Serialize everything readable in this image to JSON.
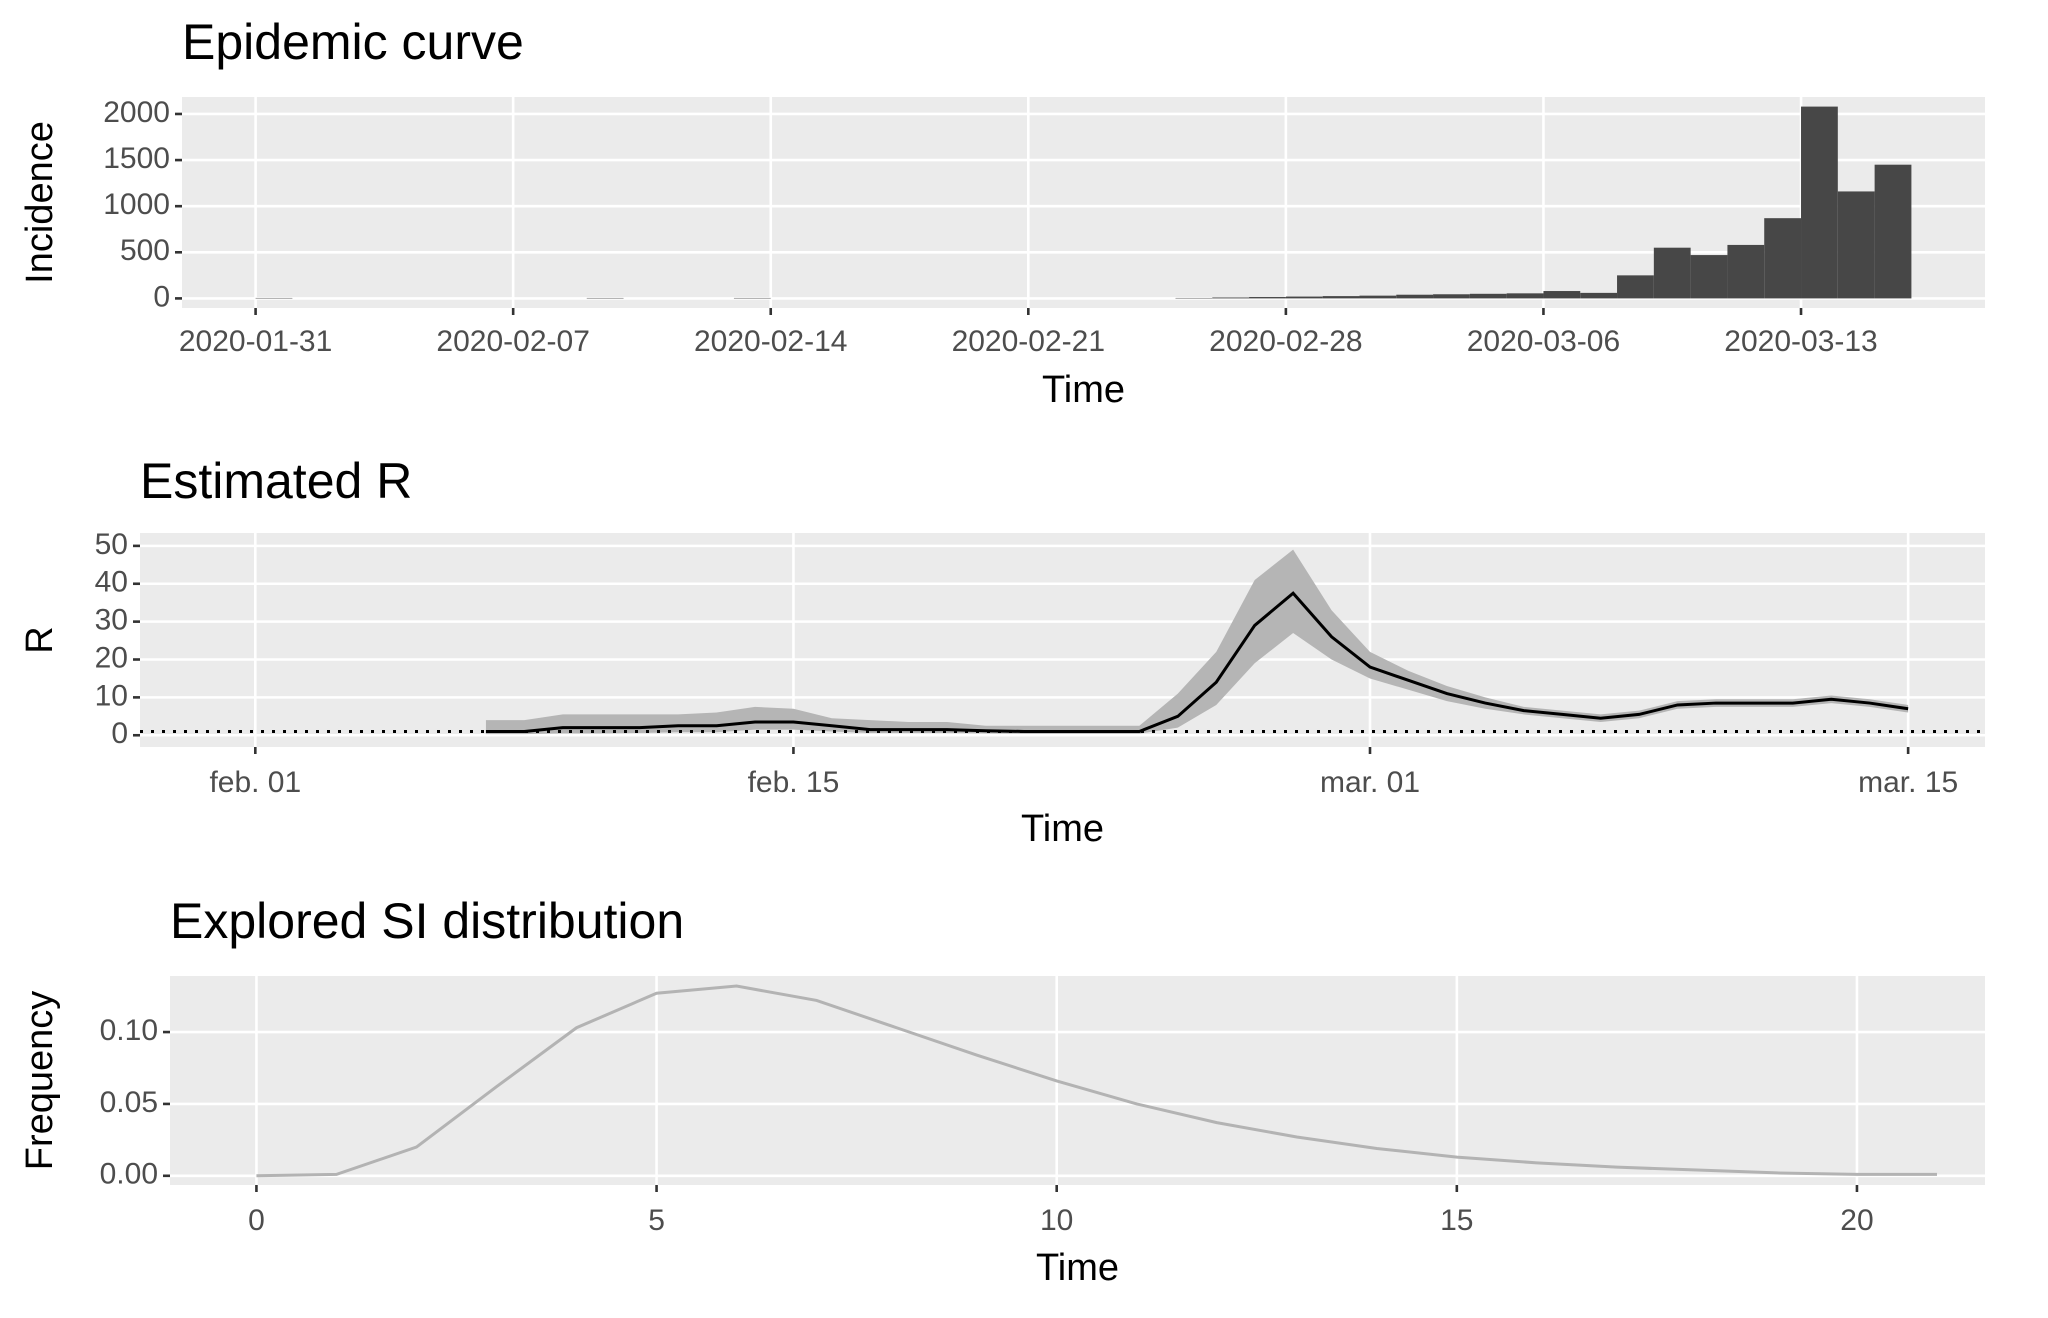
{
  "chart_data": [
    {
      "type": "bar",
      "title": "Epidemic curve",
      "xlabel": "Time",
      "ylabel": "Incidence",
      "color": "#474747",
      "x": [
        "2020-01-31",
        "2020-02-09",
        "2020-02-13",
        "2020-02-25",
        "2020-02-26",
        "2020-02-27",
        "2020-02-28",
        "2020-02-29",
        "2020-03-01",
        "2020-03-02",
        "2020-03-03",
        "2020-03-04",
        "2020-03-05",
        "2020-03-06",
        "2020-03-07",
        "2020-03-08",
        "2020-03-09",
        "2020-03-10",
        "2020-03-11",
        "2020-03-12",
        "2020-03-13",
        "2020-03-14",
        "2020-03-15"
      ],
      "values": [
        5,
        5,
        5,
        5,
        10,
        15,
        20,
        25,
        30,
        40,
        45,
        50,
        55,
        80,
        60,
        250,
        550,
        470,
        580,
        870,
        2080,
        1160,
        1450
      ],
      "xlim": [
        "2020-01-29",
        "2020-03-18"
      ],
      "xticks": [
        "2020-01-31",
        "2020-02-07",
        "2020-02-14",
        "2020-02-21",
        "2020-02-28",
        "2020-03-06",
        "2020-03-13"
      ],
      "ylim": [
        -104,
        2184
      ],
      "yticks": [
        0,
        500,
        1000,
        1500,
        2000
      ],
      "grid": true
    },
    {
      "type": "ribbon",
      "title": "Estimated R",
      "xlabel": "Time",
      "ylabel": "R",
      "color": "#000000",
      "ribbon_color": "#b5b5b5",
      "hline": 1,
      "x": [
        "02-07",
        "02-08",
        "02-09",
        "02-10",
        "02-11",
        "02-12",
        "02-13",
        "02-14",
        "02-15",
        "02-16",
        "02-17",
        "02-18",
        "02-19",
        "02-20",
        "02-21",
        "02-22",
        "02-23",
        "02-24",
        "02-25",
        "02-26",
        "02-27",
        "02-28",
        "02-29",
        "03-01",
        "03-02",
        "03-03",
        "03-04",
        "03-05",
        "03-06",
        "03-07",
        "03-08",
        "03-09",
        "03-10",
        "03-11",
        "03-12",
        "03-13",
        "03-14",
        "03-15"
      ],
      "values": [
        1,
        1,
        2,
        2,
        2,
        2.5,
        2.5,
        3.5,
        3.5,
        2.5,
        1.5,
        1.5,
        1.5,
        1.2,
        1,
        1,
        1,
        1,
        5,
        14,
        29,
        37.5,
        26,
        18,
        14.5,
        11,
        8.5,
        6.5,
        5.5,
        4.5,
        5.5,
        8,
        8.5,
        8.5,
        8.5,
        9.5,
        8.5,
        7
      ],
      "upper": [
        4,
        4,
        5.5,
        5.5,
        5.5,
        5.5,
        6,
        7.5,
        7,
        4.5,
        4,
        3.5,
        3.5,
        2.5,
        2.5,
        2.5,
        2.5,
        2.5,
        11,
        22,
        41,
        49,
        33,
        22,
        17,
        13,
        10,
        7.5,
        6.5,
        5.5,
        6.5,
        9,
        9.5,
        9.5,
        9.5,
        10.5,
        9.5,
        8
      ],
      "lower": [
        0.3,
        0.3,
        0.5,
        0.5,
        0.6,
        0.8,
        0.8,
        1.5,
        1.5,
        1,
        0.6,
        0.6,
        0.6,
        0.5,
        0.4,
        0.4,
        0.4,
        0.4,
        2,
        8,
        19,
        27,
        20,
        15,
        12,
        9,
        7,
        5.5,
        4.5,
        3.5,
        4.5,
        7,
        7.5,
        7.5,
        7.5,
        8.5,
        7.5,
        6
      ],
      "xlim": [
        "01-29",
        "03-17"
      ],
      "xticks": [
        {
          "value": "02-01",
          "label": "feb. 01"
        },
        {
          "value": "02-15",
          "label": "feb. 15"
        },
        {
          "value": "03-01",
          "label": "mar. 01"
        },
        {
          "value": "03-15",
          "label": "mar. 15"
        }
      ],
      "ylim": [
        -3.1,
        53.4
      ],
      "yticks": [
        0,
        10,
        20,
        30,
        40,
        50
      ],
      "grid": true
    },
    {
      "type": "line",
      "title": "Explored SI distribution",
      "xlabel": "Time",
      "ylabel": "Frequency",
      "color": "#b3b3b3",
      "x": [
        0,
        1,
        2,
        3,
        4,
        5,
        6,
        7,
        8,
        9,
        10,
        11,
        12,
        13,
        14,
        15,
        16,
        17,
        18,
        19,
        20,
        21
      ],
      "values": [
        0,
        0.001,
        0.02,
        0.062,
        0.103,
        0.127,
        0.132,
        0.122,
        0.103,
        0.084,
        0.066,
        0.05,
        0.037,
        0.027,
        0.019,
        0.013,
        0.009,
        0.006,
        0.004,
        0.002,
        0.001,
        0.001
      ],
      "xlim": [
        -1.08,
        21.6
      ],
      "xticks": [
        0,
        5,
        10,
        15,
        20
      ],
      "ylim": [
        -0.0064,
        0.139
      ],
      "yticks": [
        {
          "value": 0,
          "label": "0.00"
        },
        {
          "value": 0.05,
          "label": "0.05"
        },
        {
          "value": 0.1,
          "label": "0.10"
        }
      ],
      "grid": true
    }
  ]
}
